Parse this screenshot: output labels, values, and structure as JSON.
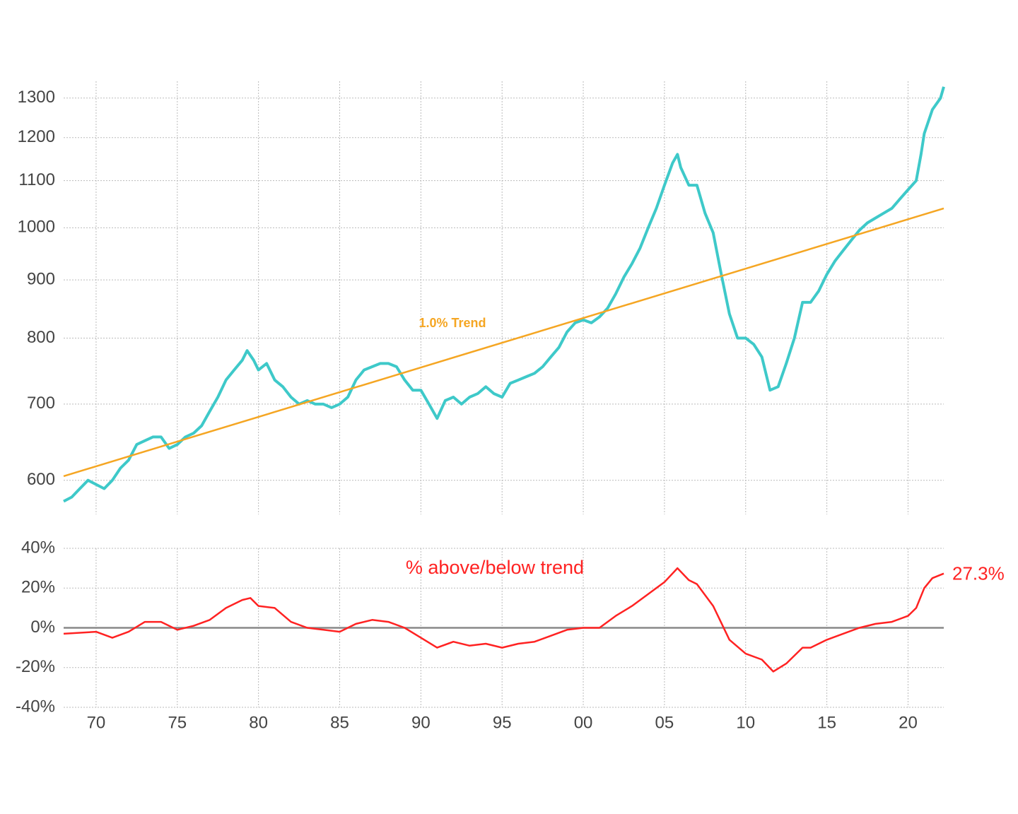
{
  "chart_data": [
    {
      "type": "line",
      "yscale": "log",
      "grid": true,
      "xlim": [
        1968,
        2022.2
      ],
      "xticks": [
        1970,
        1975,
        1980,
        1985,
        1990,
        1995,
        2000,
        2005,
        2010,
        2015,
        2020
      ],
      "ylim": [
        560,
        1345
      ],
      "yticks": [
        600,
        700,
        800,
        900,
        1000,
        1100,
        1200,
        1300
      ],
      "series": [
        {
          "color": "#3ec9c9",
          "x": [
            1968,
            1968.5,
            1969,
            1969.5,
            1970,
            1970.5,
            1971,
            1971.5,
            1972,
            1972.5,
            1973,
            1973.5,
            1974,
            1974.5,
            1975,
            1975.5,
            1976,
            1976.5,
            1977,
            1977.5,
            1978,
            1978.5,
            1979,
            1979.3,
            1979.7,
            1980,
            1980.5,
            1981,
            1981.5,
            1982,
            1982.5,
            1983,
            1983.5,
            1984,
            1984.5,
            1985,
            1985.5,
            1986,
            1986.5,
            1987,
            1987.5,
            1988,
            1988.5,
            1989,
            1989.5,
            1990,
            1990.5,
            1991,
            1991.5,
            1992,
            1992.5,
            1993,
            1993.5,
            1994,
            1994.5,
            1995,
            1995.5,
            1996,
            1996.5,
            1997,
            1997.5,
            1998,
            1998.5,
            1999,
            1999.5,
            2000,
            2000.5,
            2001,
            2001.5,
            2002,
            2002.5,
            2003,
            2003.5,
            2004,
            2004.5,
            2005,
            2005.5,
            2005.8,
            2006,
            2006.5,
            2007,
            2007.5,
            2008,
            2008.5,
            2009,
            2009.5,
            2010,
            2010.5,
            2011,
            2011.5,
            2012,
            2012.5,
            2013,
            2013.5,
            2014,
            2014.5,
            2015,
            2015.5,
            2016,
            2016.5,
            2017,
            2017.5,
            2018,
            2018.5,
            2019,
            2019.5,
            2020,
            2020.5,
            2020.8,
            2021,
            2021.5,
            2022,
            2022.2
          ],
          "values": [
            575,
            580,
            590,
            600,
            595,
            590,
            600,
            615,
            625,
            645,
            650,
            655,
            655,
            640,
            645,
            655,
            660,
            670,
            690,
            710,
            735,
            750,
            765,
            780,
            765,
            750,
            760,
            735,
            725,
            710,
            700,
            705,
            700,
            700,
            695,
            700,
            710,
            735,
            750,
            755,
            760,
            760,
            755,
            735,
            720,
            720,
            700,
            680,
            705,
            710,
            700,
            710,
            715,
            725,
            715,
            710,
            730,
            735,
            740,
            745,
            755,
            770,
            785,
            810,
            825,
            830,
            825,
            835,
            850,
            875,
            905,
            930,
            960,
            1000,
            1040,
            1090,
            1140,
            1160,
            1130,
            1090,
            1090,
            1030,
            990,
            910,
            840,
            800,
            800,
            790,
            770,
            720,
            725,
            760,
            800,
            860,
            860,
            880,
            910,
            935,
            955,
            975,
            995,
            1010,
            1020,
            1030,
            1040,
            1060,
            1080,
            1100,
            1160,
            1210,
            1270,
            1300,
            1330
          ]
        },
        {
          "name": "1.0% Trend",
          "color": "#f5a623",
          "x": [
            1968,
            2022.2
          ],
          "values": [
            605,
            1040
          ]
        }
      ]
    },
    {
      "type": "line",
      "grid": true,
      "zero_line": true,
      "xlim": [
        1968,
        2022.2
      ],
      "xticks": [
        {
          "value": 1970,
          "label": "70"
        },
        {
          "value": 1975,
          "label": "75"
        },
        {
          "value": 1980,
          "label": "80"
        },
        {
          "value": 1985,
          "label": "85"
        },
        {
          "value": 1990,
          "label": "90"
        },
        {
          "value": 1995,
          "label": "95"
        },
        {
          "value": 2000,
          "label": "00"
        },
        {
          "value": 2005,
          "label": "05"
        },
        {
          "value": 2010,
          "label": "10"
        },
        {
          "value": 2015,
          "label": "15"
        },
        {
          "value": 2020,
          "label": "20"
        }
      ],
      "ylim": [
        -40,
        40
      ],
      "yticks": [
        {
          "value": -40,
          "label": "-40%"
        },
        {
          "value": -20,
          "label": "-20%"
        },
        {
          "value": 0,
          "label": "0%"
        },
        {
          "value": 20,
          "label": "20%"
        },
        {
          "value": 40,
          "label": "40%"
        }
      ],
      "series": [
        {
          "name": "% above/below trend",
          "color": "#ff2222",
          "x": [
            1968,
            1970,
            1971,
            1972,
            1973,
            1974,
            1975,
            1976,
            1977,
            1978,
            1979,
            1979.5,
            1980,
            1981,
            1982,
            1983,
            1984,
            1985,
            1986,
            1987,
            1988,
            1989,
            1990,
            1991,
            1992,
            1993,
            1994,
            1995,
            1996,
            1997,
            1998,
            1999,
            2000,
            2001,
            2002,
            2003,
            2004,
            2005,
            2005.8,
            2006.5,
            2007,
            2008,
            2009,
            2010,
            2011,
            2011.7,
            2012.5,
            2013.5,
            2014,
            2015,
            2016,
            2017,
            2018,
            2019,
            2020,
            2020.5,
            2021,
            2021.5,
            2022.2
          ],
          "values": [
            -3,
            -2,
            -5,
            -2,
            3,
            3,
            -1,
            1,
            4,
            10,
            14,
            15,
            11,
            10,
            3,
            0,
            -1,
            -2,
            2,
            4,
            3,
            0,
            -5,
            -10,
            -7,
            -9,
            -8,
            -10,
            -8,
            -7,
            -4,
            -1,
            0,
            0,
            6,
            11,
            17,
            23,
            30,
            24,
            22,
            11,
            -6,
            -13,
            -16,
            -22,
            -18,
            -10,
            -10,
            -6,
            -3,
            0,
            2,
            3,
            6,
            10,
            20,
            25,
            27.3
          ],
          "value_labels": [
            null,
            null,
            null,
            null,
            null,
            null,
            null,
            null,
            null,
            null,
            null,
            null,
            null,
            null,
            null,
            null,
            null,
            null,
            null,
            null,
            null,
            null,
            null,
            null,
            null,
            null,
            null,
            null,
            null,
            null,
            null,
            null,
            null,
            null,
            null,
            null,
            null,
            null,
            null,
            null,
            null,
            null,
            null,
            null,
            null,
            null,
            null,
            null,
            null,
            null,
            null,
            null,
            null,
            null,
            null,
            null,
            null,
            null,
            "27.3%"
          ]
        }
      ]
    }
  ]
}
